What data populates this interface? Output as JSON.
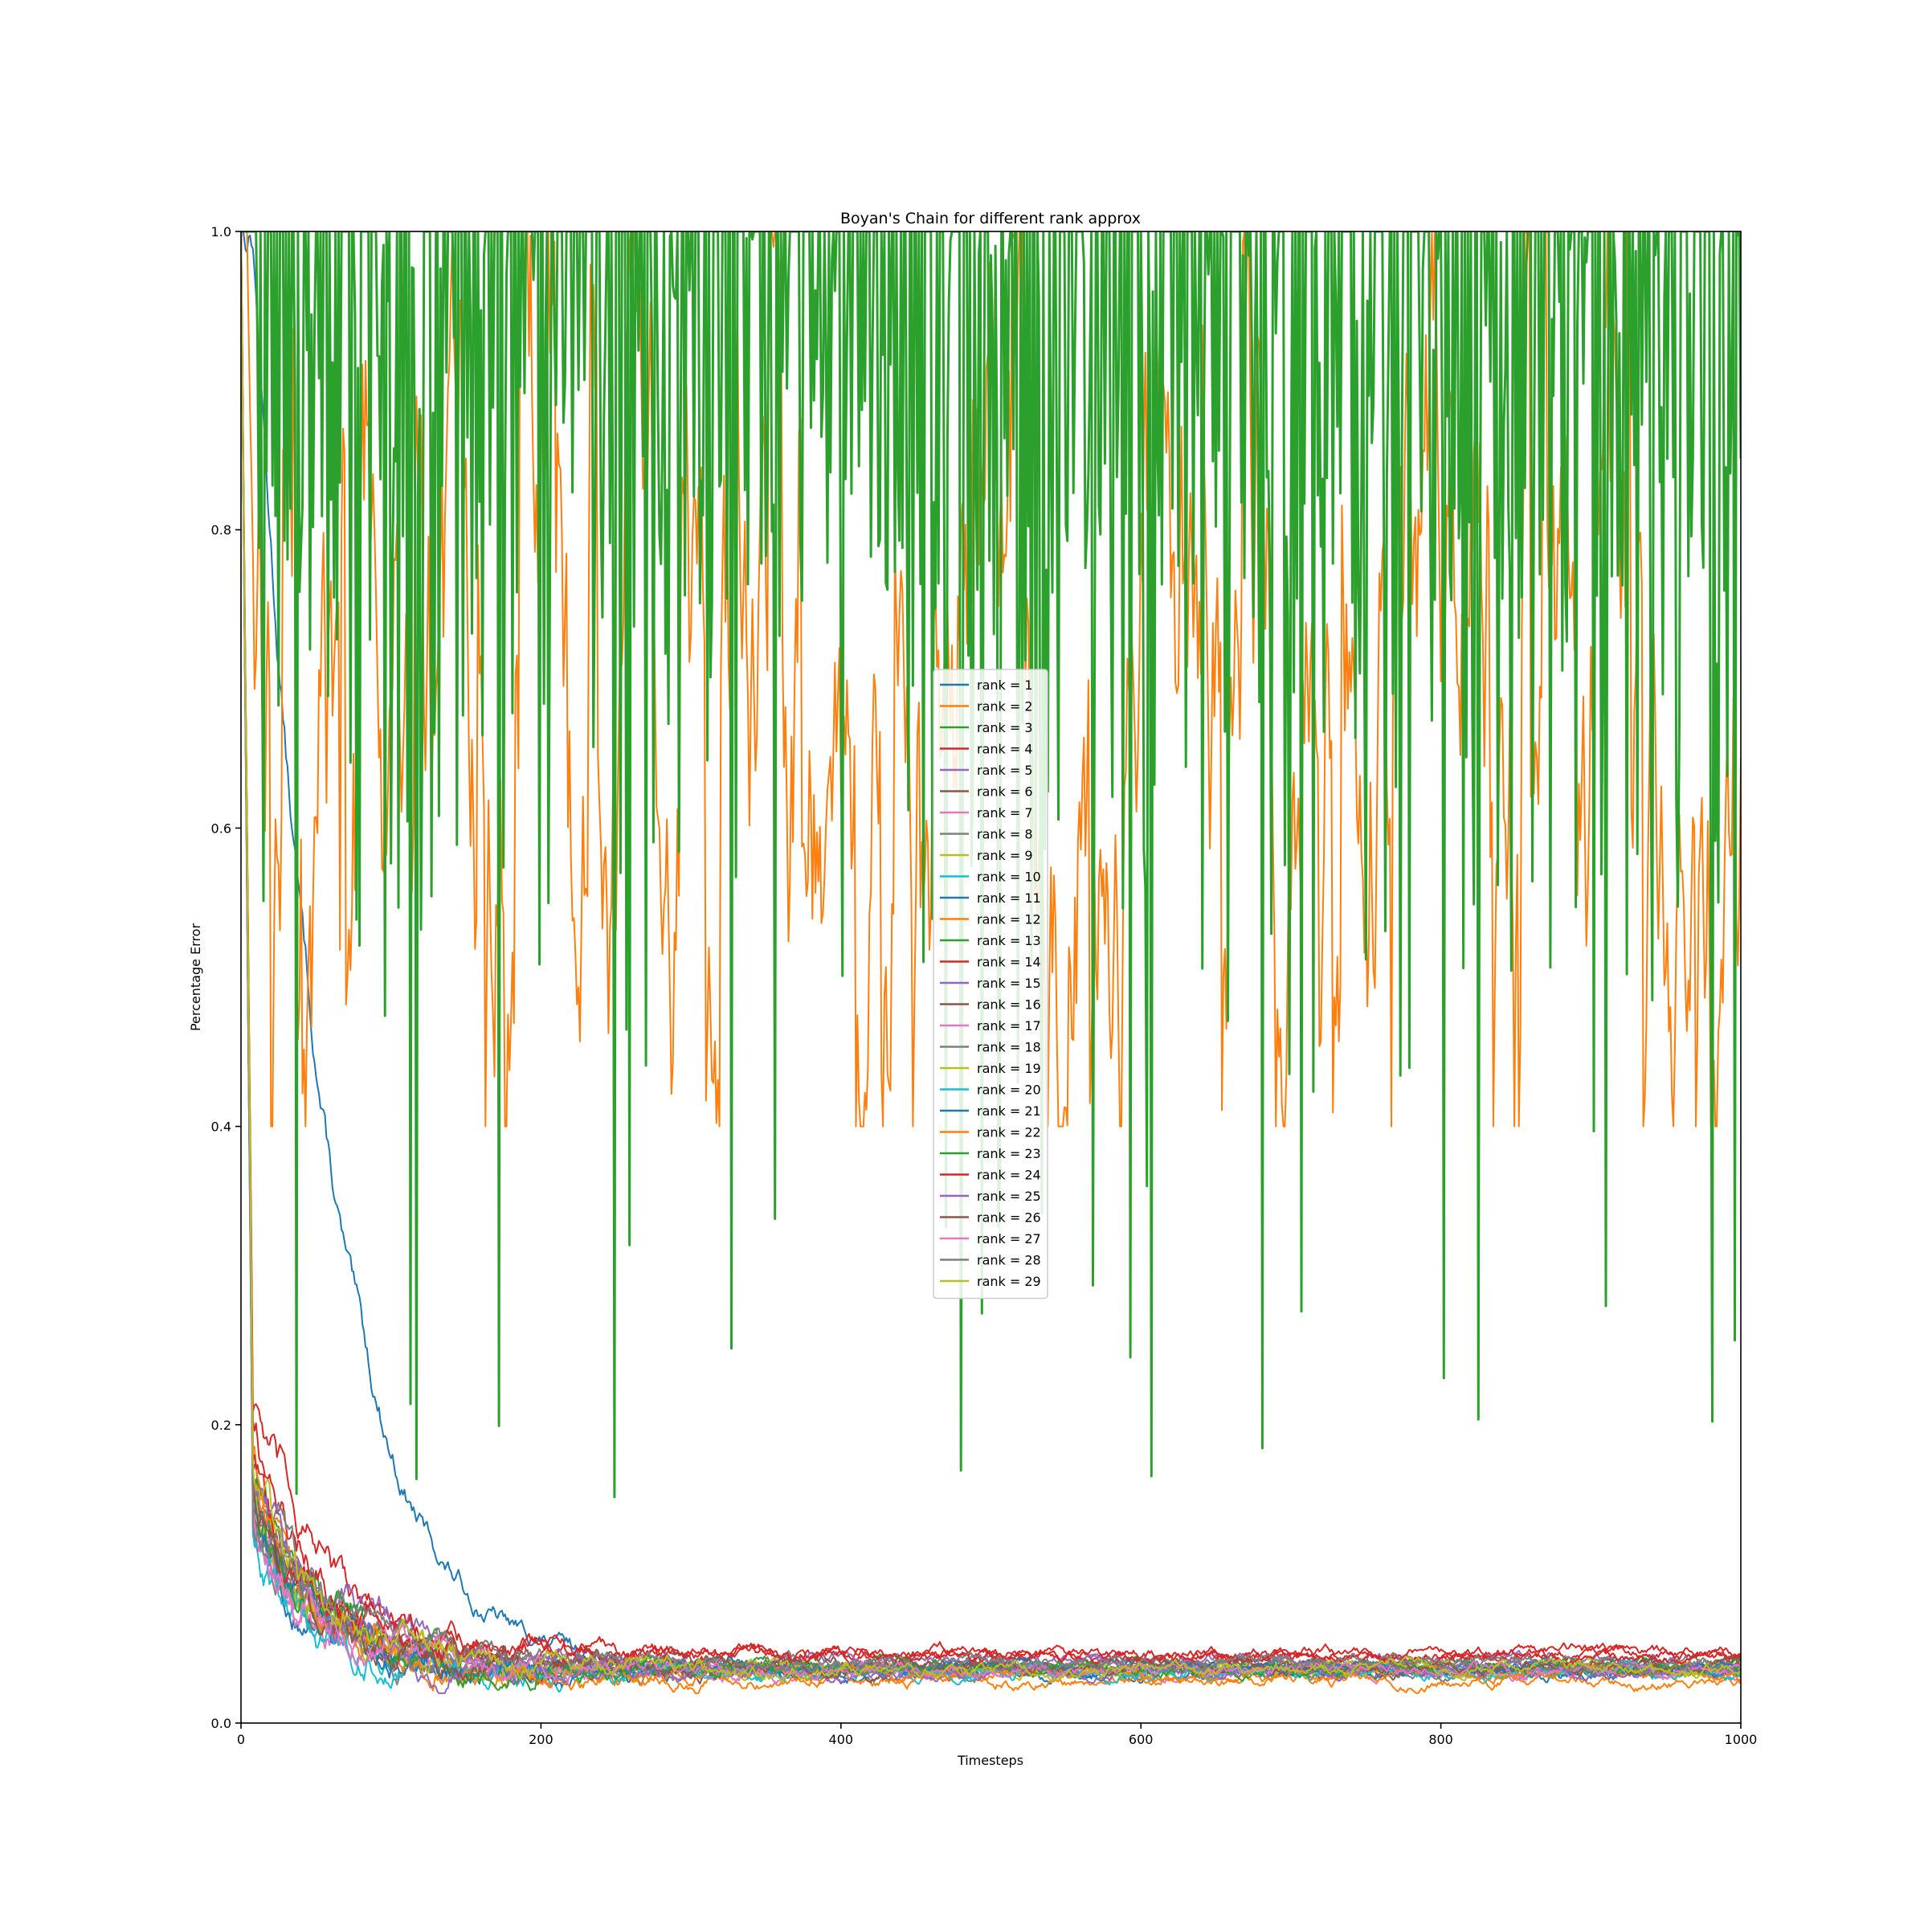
{
  "chart_data": {
    "type": "line",
    "title": "Boyan's Chain for different rank approx",
    "xlabel": "Timesteps",
    "ylabel": "Percentage Error",
    "xlim": [
      0,
      1000
    ],
    "ylim": [
      0.0,
      1.0
    ],
    "xticks": [
      0,
      200,
      400,
      600,
      800,
      1000
    ],
    "xtick_labels": [
      "0",
      "200",
      "400",
      "600",
      "800",
      "1000"
    ],
    "yticks": [
      0.0,
      0.2,
      0.4,
      0.6,
      0.8,
      1.0
    ],
    "ytick_labels": [
      "0.0",
      "0.2",
      "0.4",
      "0.6",
      "0.8",
      "1.0"
    ],
    "grid": false,
    "legend_position": "center",
    "series": [
      {
        "name": "rank = 1",
        "color": "#1f77b4",
        "final": 0.036,
        "start": 1.0
      },
      {
        "name": "rank = 2",
        "color": "#ff7f0e",
        "final": 0.74,
        "start": 1.0,
        "behavior": "noisy-high",
        "level": [
          0.48,
          1.0
        ]
      },
      {
        "name": "rank = 3",
        "color": "#2ca02c",
        "final": 0.55,
        "start": 1.0,
        "behavior": "noisy-spiky",
        "level": [
          0.15,
          1.0
        ]
      },
      {
        "name": "rank = 4",
        "color": "#d62728",
        "final": 0.047,
        "start": 0.22
      },
      {
        "name": "rank = 5",
        "color": "#9467bd",
        "final": 0.042,
        "start": 0.16
      },
      {
        "name": "rank = 6",
        "color": "#8c564b",
        "final": 0.04,
        "start": 0.15
      },
      {
        "name": "rank = 7",
        "color": "#e377c2",
        "final": 0.034,
        "start": 0.13
      },
      {
        "name": "rank = 8",
        "color": "#7f7f7f",
        "final": 0.035,
        "start": 0.14
      },
      {
        "name": "rank = 9",
        "color": "#bcbd22",
        "final": 0.037,
        "start": 0.15
      },
      {
        "name": "rank = 10",
        "color": "#17becf",
        "final": 0.035,
        "start": 0.12
      },
      {
        "name": "rank = 11",
        "color": "#1f77b4",
        "final": 0.033,
        "start": 0.14
      },
      {
        "name": "rank = 12",
        "color": "#ff7f0e",
        "final": 0.028,
        "start": 0.15
      },
      {
        "name": "rank = 13",
        "color": "#2ca02c",
        "final": 0.038,
        "start": 0.16
      },
      {
        "name": "rank = 14",
        "color": "#d62728",
        "final": 0.045,
        "start": 0.18
      },
      {
        "name": "rank = 15",
        "color": "#9467bd",
        "final": 0.038,
        "start": 0.15
      },
      {
        "name": "rank = 16",
        "color": "#8c564b",
        "final": 0.036,
        "start": 0.14
      },
      {
        "name": "rank = 17",
        "color": "#e377c2",
        "final": 0.035,
        "start": 0.13
      },
      {
        "name": "rank = 18",
        "color": "#7f7f7f",
        "final": 0.04,
        "start": 0.14
      },
      {
        "name": "rank = 19",
        "color": "#bcbd22",
        "final": 0.036,
        "start": 0.16
      },
      {
        "name": "rank = 20",
        "color": "#17becf",
        "final": 0.034,
        "start": 0.12
      },
      {
        "name": "rank = 21",
        "color": "#1f77b4",
        "final": 0.037,
        "start": 0.14
      },
      {
        "name": "rank = 22",
        "color": "#ff7f0e",
        "final": 0.033,
        "start": 0.15
      },
      {
        "name": "rank = 23",
        "color": "#2ca02c",
        "final": 0.036,
        "start": 0.15
      },
      {
        "name": "rank = 24",
        "color": "#d62728",
        "final": 0.045,
        "start": 0.16
      },
      {
        "name": "rank = 25",
        "color": "#9467bd",
        "final": 0.035,
        "start": 0.15
      },
      {
        "name": "rank = 26",
        "color": "#8c564b",
        "final": 0.038,
        "start": 0.14
      },
      {
        "name": "rank = 27",
        "color": "#e377c2",
        "final": 0.036,
        "start": 0.13
      },
      {
        "name": "rank = 28",
        "color": "#7f7f7f",
        "final": 0.04,
        "start": 0.14
      },
      {
        "name": "rank = 29",
        "color": "#bcbd22",
        "final": 0.036,
        "start": 0.15
      }
    ]
  }
}
